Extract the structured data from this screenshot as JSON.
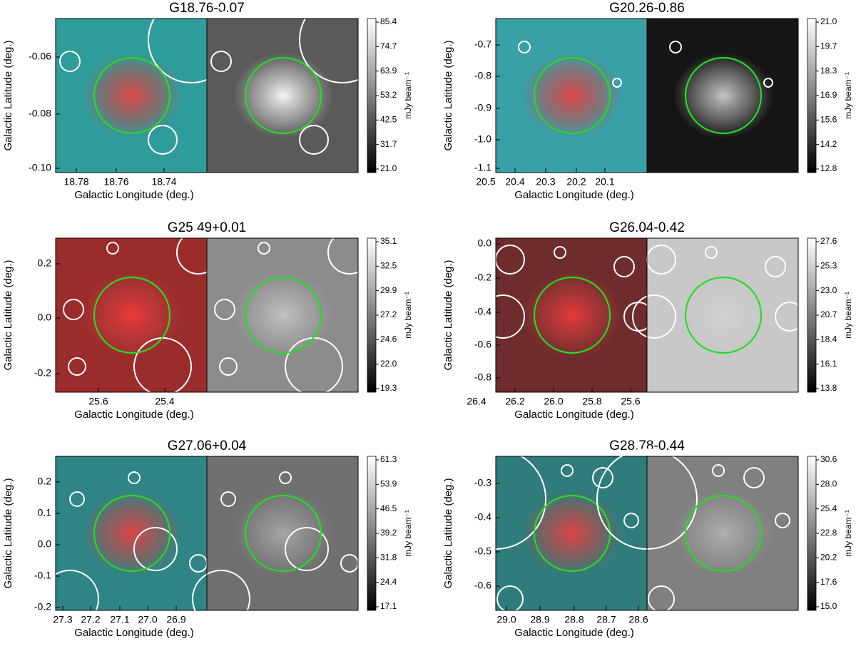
{
  "panels": [
    {
      "title": "G18.76-0.07",
      "x_label": "Galactic Longitude (deg.)",
      "y_label": "Galactic Latitude (deg.)",
      "x_ticks": [
        "18.78",
        "18.76",
        "18.74"
      ],
      "y_ticks": [
        "-0.06",
        "-0.08",
        "-0.10"
      ],
      "colorbar_ticks": [
        "85.4",
        "74.7",
        "63.9",
        "53.2",
        "42.5",
        "31.7",
        "21.0"
      ],
      "colorbar_label": "mJy beam⁻¹"
    },
    {
      "title": "G20.26-0.86",
      "x_label": "Galactic Longitude (deg.)",
      "y_label": "Galactic Latitude (deg.)",
      "x_ticks": [
        "20.5",
        "20.4",
        "20.3",
        "20.2",
        "20.1"
      ],
      "y_ticks": [
        "-0.7",
        "-0.8",
        "-0.9",
        "-1.0",
        "-1.1"
      ],
      "colorbar_ticks": [
        "21.0",
        "19.7",
        "18.3",
        "16.9",
        "15.6",
        "14.2",
        "12.8"
      ],
      "colorbar_label": "mJy beam⁻¹"
    },
    {
      "title": "G25.49+0.01",
      "x_label": "Galactic Longitude (deg.)",
      "y_label": "Galactic Latitude (deg.)",
      "x_ticks": [
        "25.6",
        "25.4"
      ],
      "y_ticks": [
        "0.2",
        "0.0",
        "-0.2"
      ],
      "colorbar_ticks": [
        "35.1",
        "32.5",
        "29.9",
        "27.2",
        "24.6",
        "22.0",
        "19.3"
      ],
      "colorbar_label": "mJy beam⁻¹"
    },
    {
      "title": "G26.04-0.42",
      "x_label": "Galactic Longitude (deg.)",
      "y_label": "Galactic Latitude (deg.)",
      "x_ticks": [
        "26.4",
        "26.2",
        "26.0",
        "25.8",
        "25.6"
      ],
      "y_ticks": [
        "0.0",
        "-0.2",
        "-0.4",
        "-0.6",
        "-0.8"
      ],
      "colorbar_ticks": [
        "27.6",
        "25.3",
        "23.0",
        "20.7",
        "18.4",
        "16.1",
        "13.8"
      ],
      "colorbar_label": "mJy beam⁻¹"
    },
    {
      "title": "G27.06+0.04",
      "x_label": "Galactic Longitude (deg.)",
      "y_label": "Galactic Latitude (deg.)",
      "x_ticks": [
        "27.3",
        "27.2",
        "27.1",
        "27.0",
        "26.9"
      ],
      "y_ticks": [
        "0.2",
        "0.1",
        "0.0",
        "-0.1",
        "-0.2"
      ],
      "colorbar_ticks": [
        "61.3",
        "53.9",
        "46.5",
        "39.2",
        "31.8",
        "24.4",
        "17.1"
      ],
      "colorbar_label": "mJy beam⁻¹"
    },
    {
      "title": "G28.78-0.44",
      "x_label": "Galactic Longitude (deg.)",
      "y_label": "Galactic Latitude (deg.)",
      "x_ticks": [
        "29.0",
        "28.9",
        "28.8",
        "28.7",
        "28.6"
      ],
      "y_ticks": [
        "-0.3",
        "-0.4",
        "-0.5",
        "-0.6"
      ],
      "colorbar_ticks": [
        "30.6",
        "28.0",
        "25.4",
        "22.8",
        "20.2",
        "17.6",
        "15.0"
      ],
      "colorbar_label": "mJy beam⁻¹"
    }
  ]
}
